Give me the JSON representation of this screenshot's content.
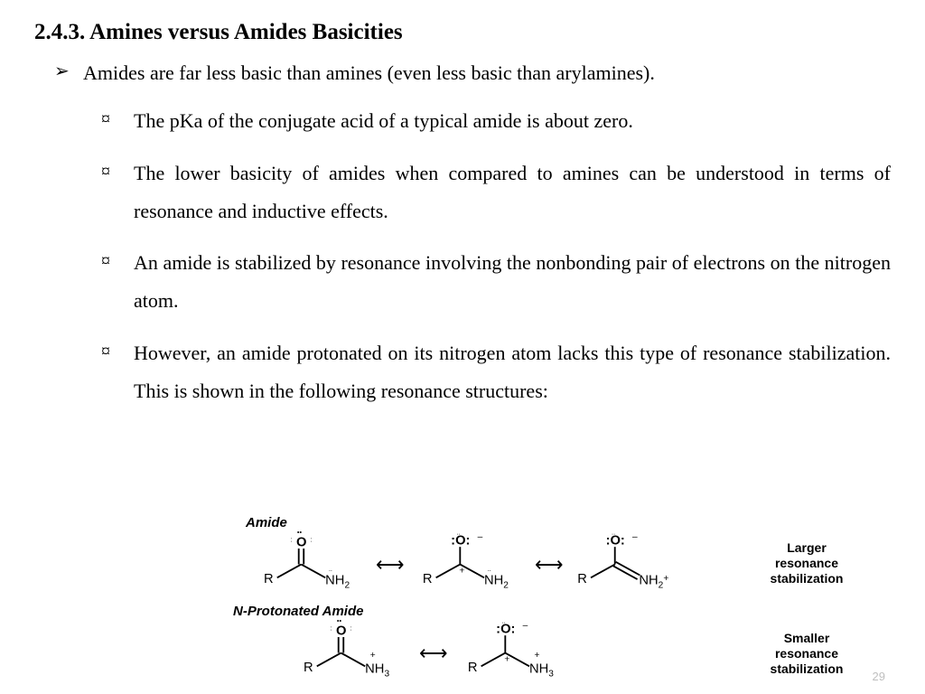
{
  "heading": "2.4.3. Amines versus Amides Basicities",
  "bullets": {
    "l1": {
      "marker": "➢",
      "text": "Amides are far less basic than amines (even less basic than arylamines)."
    },
    "l2": [
      {
        "marker": "¤",
        "text": "The pKa of the conjugate acid of a typical amide is about zero."
      },
      {
        "marker": "¤",
        "text": "The lower basicity of amides when compared to amines can be understood in terms of resonance and inductive effects."
      },
      {
        "marker": "¤",
        "text": "An amide is stabilized by resonance involving the nonbonding pair of electrons on the nitrogen atom."
      },
      {
        "marker": "¤",
        "text": "However, an amide protonated on its nitrogen atom lacks this type of resonance stabilization. This is shown in the following resonance structures:"
      }
    ]
  },
  "diagram": {
    "title_amide": "Amide",
    "title_prot": "N-Protonated Amide",
    "note_larger": "Larger\nresonance\nstabilization",
    "note_smaller": "Smaller\nresonance\nstabilization",
    "R": "R",
    "O": "O",
    "NH2": "NH",
    "NH2_sub": "2",
    "NH2_plus": "+",
    "NH3": "NH",
    "NH3_sub": "3",
    "minus": "–",
    "plus": "+",
    "colors": {
      "text": "#000000",
      "bg": "#ffffff",
      "page_num": "#bfbfbf"
    }
  },
  "page_number": "29"
}
